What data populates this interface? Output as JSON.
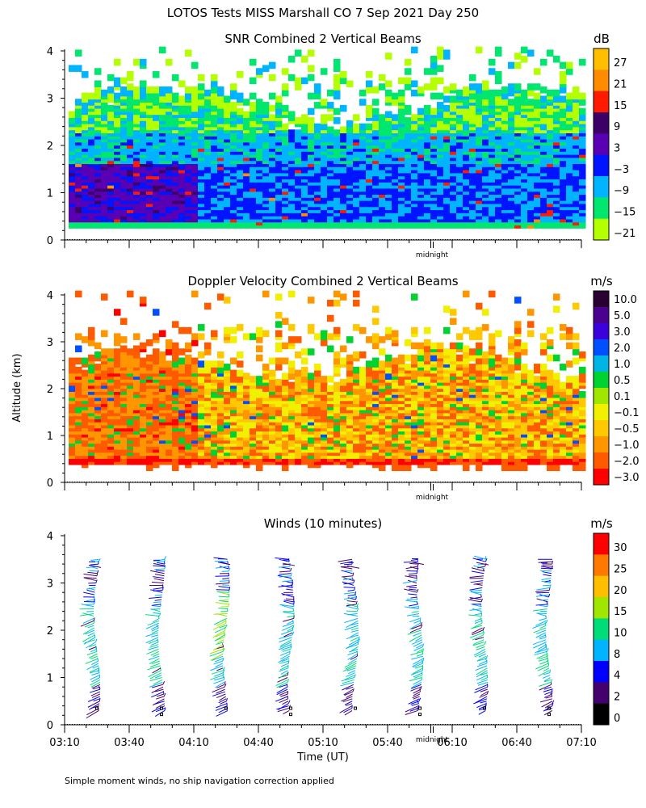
{
  "header": {
    "title": "LOTOS Tests MISS Marshall CO   7 Sep 2021 Day 250",
    "footnote": "Simple moment winds, no ship navigation correction applied"
  },
  "chart_data": [
    {
      "type": "heatmap",
      "title": "SNR Combined 2 Vertical Beams",
      "ylabel": "",
      "ylim": [
        0,
        4
      ],
      "yticks": [
        "0",
        "1",
        "2",
        "3",
        "4"
      ],
      "marker": "midnight",
      "colorbar": {
        "unit": "dB",
        "labels": [
          "27",
          "21",
          "15",
          "9",
          "3",
          "−3",
          "−9",
          "−15",
          "−21"
        ],
        "colors": [
          "#ffbf00",
          "#ff8c00",
          "#ff1a00",
          "#3d0066",
          "#5a00b4",
          "#0014ff",
          "#00b4ff",
          "#00e66e",
          "#b4ff00"
        ]
      }
    },
    {
      "type": "heatmap",
      "title": "Doppler Velocity Combined 2 Vertical Beams",
      "ylabel": "Altitude (km)",
      "ylim": [
        0,
        4
      ],
      "yticks": [
        "0",
        "1",
        "2",
        "3",
        "4"
      ],
      "marker": "midnight",
      "colorbar": {
        "unit": "m/s",
        "labels": [
          "10.0",
          "5.0",
          "3.0",
          "2.0",
          "1.0",
          "0.5",
          "0.1",
          "−0.1",
          "−0.5",
          "−1.0",
          "−2.0",
          "−3.0"
        ],
        "colors": [
          "#2a0033",
          "#4b0090",
          "#3c00dc",
          "#0050ff",
          "#00b4e6",
          "#00d232",
          "#a0e600",
          "#f0f000",
          "#ffc800",
          "#ff9600",
          "#ff5a00",
          "#ff0000"
        ]
      }
    },
    {
      "type": "scatter",
      "title": "Winds (10 minutes)",
      "xlabel": "Time (UT)",
      "ylabel": "",
      "ylim": [
        0,
        4
      ],
      "yticks": [
        "0",
        "1",
        "2",
        "3",
        "4"
      ],
      "xticks": [
        "03:10",
        "03:40",
        "04:10",
        "04:40",
        "05:10",
        "05:40",
        "06:10",
        "06:40",
        "07:10"
      ],
      "marker": "midnight",
      "profile_times": [
        "03:25",
        "03:55",
        "04:25",
        "04:55",
        "05:25",
        "05:55",
        "06:25",
        "06:55"
      ],
      "colorbar": {
        "unit": "m/s",
        "labels": [
          "30",
          "25",
          "20",
          "15",
          "10",
          "8",
          "4",
          "2",
          "0"
        ],
        "colors": [
          "#ff0000",
          "#ff7800",
          "#ffbe00",
          "#a0e600",
          "#00dc78",
          "#00b4ff",
          "#0000ff",
          "#46006e",
          "#000000"
        ]
      }
    }
  ]
}
